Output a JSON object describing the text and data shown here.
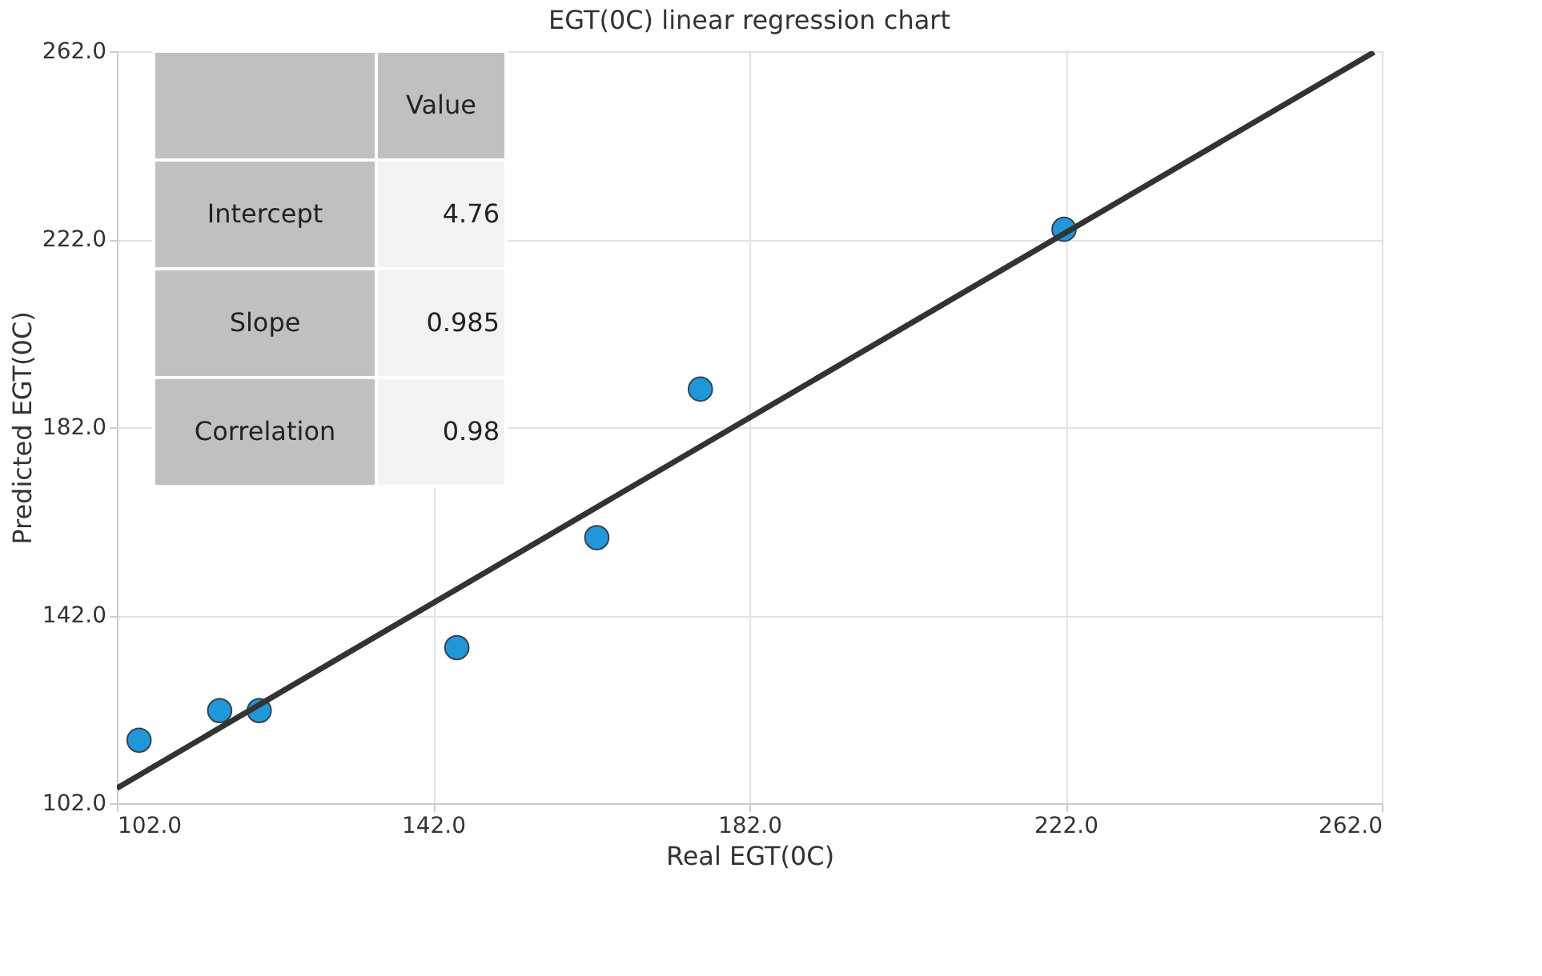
{
  "chart_data": {
    "type": "scatter",
    "title": "EGT(0C) linear regression chart",
    "xlabel": "Real EGT(0C)",
    "ylabel": "Predicted EGT(0C)",
    "xlim": [
      102,
      262
    ],
    "ylim": [
      102,
      262
    ],
    "xticks": [
      {
        "value": 102,
        "label": "102.0"
      },
      {
        "value": 142,
        "label": "142.0"
      },
      {
        "value": 182,
        "label": "182.0"
      },
      {
        "value": 222,
        "label": "222.0"
      },
      {
        "value": 262,
        "label": "262.0"
      }
    ],
    "yticks": [
      {
        "value": 102,
        "label": "102.0"
      },
      {
        "value": 142,
        "label": "142.0"
      },
      {
        "value": 182,
        "label": "182.0"
      },
      {
        "value": 222,
        "label": "222.0"
      },
      {
        "value": 262,
        "label": "262.0"
      }
    ],
    "grid": true,
    "marker": "circle",
    "series": [
      {
        "color": "#1f97d8",
        "x": [
          104.8,
          115.0,
          120.0,
          145.0,
          162.7,
          175.8,
          221.8
        ],
        "values": [
          115.4,
          121.7,
          121.7,
          135.1,
          158.5,
          190.1,
          224.1
        ]
      },
      {
        "type": "line",
        "marker": "none",
        "color": "#333333",
        "x": [
          102,
          261
        ],
        "values": [
          105.2,
          261.8
        ]
      }
    ],
    "annotations": [
      "Value",
      "Intercept",
      "4.76",
      "Slope",
      "0.985",
      "Correlation",
      "0.98"
    ]
  }
}
